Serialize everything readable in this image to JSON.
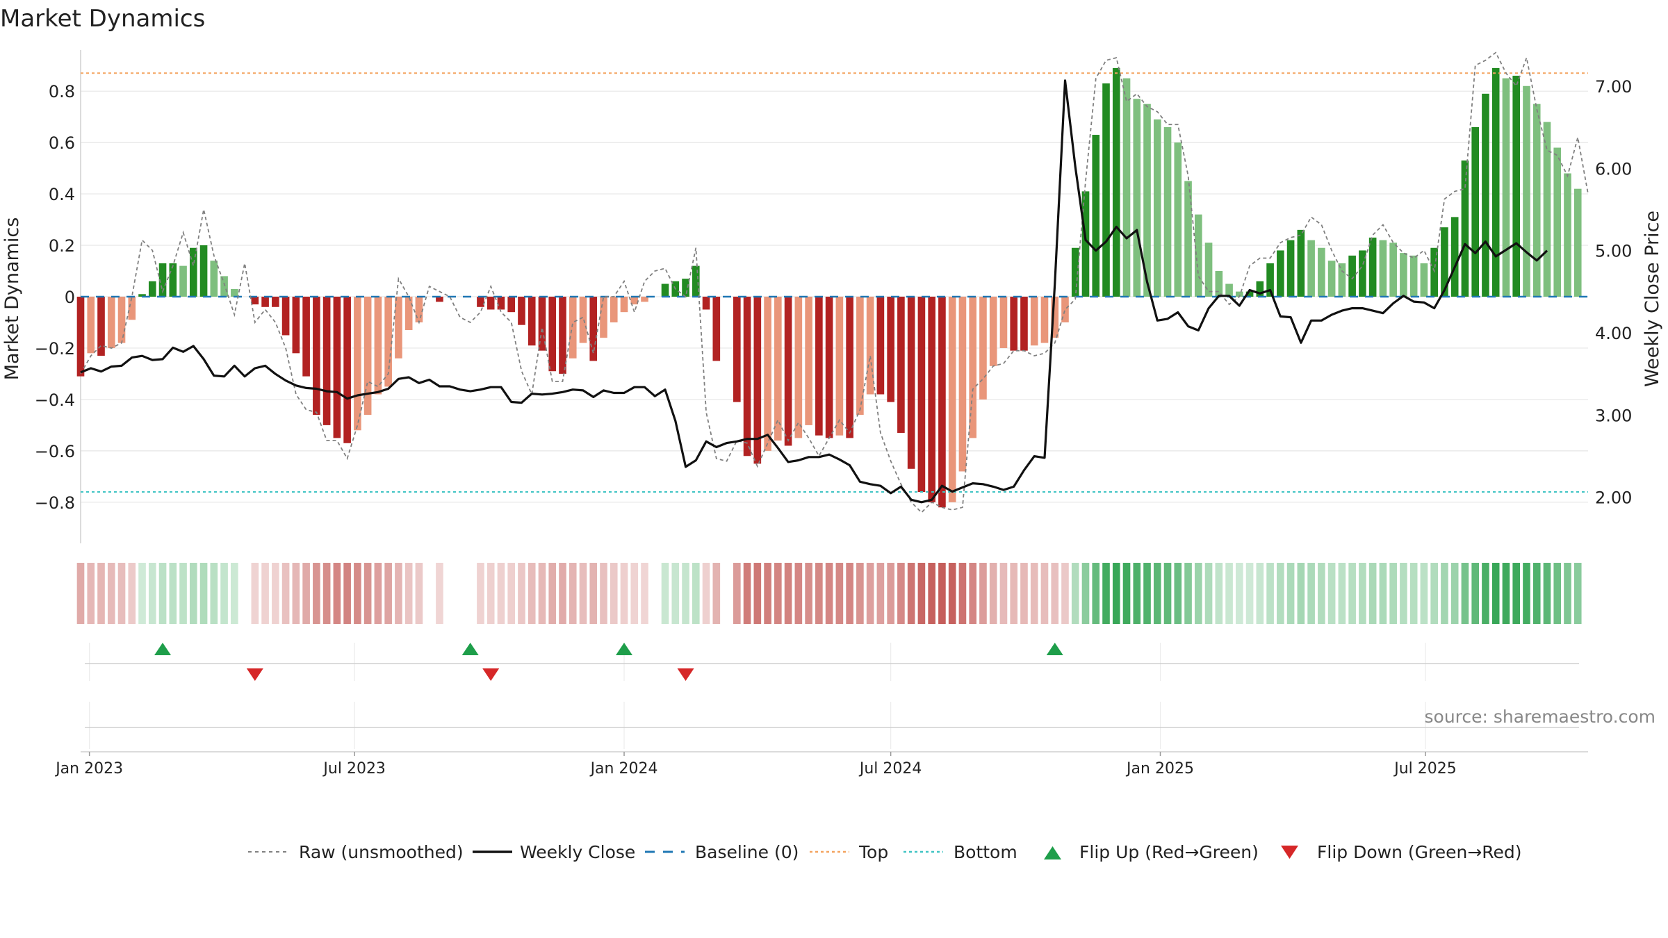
{
  "chart_data": {
    "type": "bar",
    "title": "Market Dynamics",
    "ylabel": "Market Dynamics",
    "y2label": "Weekly Close Price",
    "ylim": [
      -0.96,
      0.96
    ],
    "y2lim": [
      1.44,
      7.44
    ],
    "yticks": [
      -0.8,
      -0.6,
      -0.4,
      -0.2,
      0,
      0.2,
      0.4,
      0.6,
      0.8
    ],
    "yticklabels": [
      "−0.8",
      "−0.6",
      "−0.4",
      "−0.2",
      "0",
      "0.2",
      "0.4",
      "0.6",
      "0.8"
    ],
    "y2ticks": [
      2.0,
      3.0,
      4.0,
      5.0,
      6.0,
      7.0
    ],
    "y2ticklabels": [
      "2.00",
      "3.00",
      "4.00",
      "5.00",
      "6.00",
      "7.00"
    ],
    "xlim": [
      "2022-12-26",
      "2025-10-20"
    ],
    "xticks": [
      "2023-01-01",
      "2023-07-01",
      "2024-01-01",
      "2024-07-01",
      "2025-01-01",
      "2025-07-01"
    ],
    "xticklabels": [
      "Jan 2023",
      "Jul 2023",
      "Jan 2024",
      "Jul 2024",
      "Jan 2025",
      "Jul 2025"
    ],
    "grid": true,
    "top_level": 0.87,
    "bottom_level": -0.76,
    "baseline": 0,
    "start_date": "2022-12-26",
    "week_step_days": 7,
    "values": [
      -0.31,
      -0.22,
      -0.23,
      -0.2,
      -0.18,
      -0.09,
      0.01,
      0.06,
      0.13,
      0.13,
      0.12,
      0.19,
      0.2,
      0.14,
      0.08,
      0.03,
      0.0,
      -0.03,
      -0.04,
      -0.04,
      -0.15,
      -0.22,
      -0.31,
      -0.46,
      -0.5,
      -0.55,
      -0.57,
      -0.52,
      -0.46,
      -0.38,
      -0.35,
      -0.24,
      -0.13,
      -0.1,
      0.0,
      -0.02,
      0.0,
      0.0,
      0.0,
      -0.04,
      -0.05,
      -0.05,
      -0.06,
      -0.11,
      -0.19,
      -0.21,
      -0.29,
      -0.3,
      -0.24,
      -0.18,
      -0.25,
      -0.16,
      -0.1,
      -0.06,
      -0.03,
      -0.02,
      0.0,
      0.05,
      0.06,
      0.07,
      0.12,
      -0.05,
      -0.25,
      0.0,
      -0.41,
      -0.62,
      -0.65,
      -0.6,
      -0.56,
      -0.58,
      -0.55,
      -0.5,
      -0.54,
      -0.55,
      -0.54,
      -0.55,
      -0.46,
      -0.38,
      -0.38,
      -0.41,
      -0.53,
      -0.67,
      -0.76,
      -0.8,
      -0.82,
      -0.8,
      -0.68,
      -0.55,
      -0.4,
      -0.27,
      -0.2,
      -0.21,
      -0.21,
      -0.19,
      -0.18,
      -0.16,
      -0.1,
      0.19,
      0.41,
      0.63,
      0.83,
      0.89,
      0.85,
      0.77,
      0.75,
      0.69,
      0.66,
      0.6,
      0.45,
      0.32,
      0.21,
      0.1,
      0.05,
      0.02,
      0.02,
      0.06,
      0.13,
      0.18,
      0.22,
      0.26,
      0.22,
      0.19,
      0.14,
      0.13,
      0.16,
      0.18,
      0.23,
      0.22,
      0.21,
      0.17,
      0.16,
      0.13,
      0.19,
      0.27,
      0.31,
      0.53,
      0.66,
      0.79,
      0.89,
      0.85,
      0.86,
      0.82,
      0.75,
      0.68,
      0.58,
      0.48,
      0.42
    ],
    "raw_values": [
      -0.3,
      -0.23,
      -0.19,
      -0.2,
      -0.18,
      0.0,
      0.22,
      0.18,
      0.02,
      0.12,
      0.25,
      0.12,
      0.34,
      0.16,
      0.05,
      -0.07,
      0.13,
      -0.1,
      -0.05,
      -0.1,
      -0.2,
      -0.38,
      -0.44,
      -0.45,
      -0.56,
      -0.56,
      -0.63,
      -0.5,
      -0.33,
      -0.35,
      -0.3,
      0.07,
      0.0,
      -0.1,
      0.04,
      0.02,
      0.0,
      -0.08,
      -0.1,
      -0.06,
      0.04,
      -0.06,
      -0.1,
      -0.29,
      -0.38,
      -0.12,
      -0.33,
      -0.33,
      -0.1,
      -0.08,
      -0.22,
      0.0,
      0.0,
      0.06,
      -0.06,
      0.06,
      0.1,
      0.11,
      0.03,
      0.0,
      0.19,
      -0.45,
      -0.63,
      -0.64,
      -0.56,
      -0.57,
      -0.66,
      -0.57,
      -0.48,
      -0.56,
      -0.49,
      -0.55,
      -0.62,
      -0.55,
      -0.48,
      -0.53,
      -0.44,
      -0.23,
      -0.53,
      -0.64,
      -0.73,
      -0.8,
      -0.84,
      -0.8,
      -0.82,
      -0.83,
      -0.82,
      -0.36,
      -0.32,
      -0.27,
      -0.26,
      -0.21,
      -0.21,
      -0.23,
      -0.22,
      -0.18,
      -0.05,
      -0.01,
      0.45,
      0.85,
      0.92,
      0.93,
      0.76,
      0.79,
      0.74,
      0.72,
      0.67,
      0.67,
      0.47,
      0.08,
      0.02,
      0.02,
      -0.03,
      0.0,
      0.12,
      0.15,
      0.15,
      0.21,
      0.23,
      0.24,
      0.31,
      0.28,
      0.18,
      0.1,
      0.07,
      0.12,
      0.24,
      0.28,
      0.21,
      0.17,
      0.15,
      0.18,
      0.1,
      0.38,
      0.41,
      0.42,
      0.9,
      0.92,
      0.95,
      0.87,
      0.82,
      0.93,
      0.73,
      0.57,
      0.55,
      0.47,
      0.62,
      0.4
    ],
    "price": [
      3.52,
      3.57,
      3.53,
      3.59,
      3.6,
      3.7,
      3.72,
      3.67,
      3.68,
      3.82,
      3.77,
      3.84,
      3.68,
      3.48,
      3.47,
      3.6,
      3.47,
      3.57,
      3.6,
      3.5,
      3.42,
      3.36,
      3.33,
      3.32,
      3.29,
      3.28,
      3.2,
      3.24,
      3.26,
      3.28,
      3.32,
      3.44,
      3.46,
      3.39,
      3.43,
      3.35,
      3.35,
      3.31,
      3.29,
      3.31,
      3.34,
      3.34,
      3.16,
      3.15,
      3.26,
      3.25,
      3.26,
      3.28,
      3.31,
      3.3,
      3.22,
      3.3,
      3.27,
      3.27,
      3.34,
      3.34,
      3.23,
      3.31,
      2.93,
      2.37,
      2.45,
      2.68,
      2.61,
      2.66,
      2.68,
      2.71,
      2.71,
      2.76,
      2.6,
      2.43,
      2.45,
      2.49,
      2.49,
      2.52,
      2.46,
      2.39,
      2.19,
      2.16,
      2.14,
      2.05,
      2.13,
      1.97,
      1.94,
      1.97,
      2.14,
      2.07,
      2.12,
      2.17,
      2.16,
      2.13,
      2.09,
      2.13,
      2.33,
      2.5,
      2.48,
      4.59,
      7.07,
      6.02,
      5.13,
      5.0,
      5.11,
      5.29,
      5.15,
      5.25,
      4.62,
      4.15,
      4.17,
      4.25,
      4.08,
      4.03,
      4.3,
      4.45,
      4.45,
      4.33,
      4.52,
      4.48,
      4.52,
      4.2,
      4.19,
      3.88,
      4.15,
      4.15,
      4.22,
      4.27,
      4.3,
      4.3,
      4.27,
      4.24,
      4.36,
      4.45,
      4.38,
      4.37,
      4.3,
      4.52,
      4.8,
      5.08,
      4.97,
      5.11,
      4.93,
      5.01,
      5.09,
      4.98,
      4.88,
      5.0
    ]
  },
  "legend": {
    "raw": "Raw (unsmoothed)",
    "close": "Weekly Close",
    "baseline": "Baseline (0)",
    "top": "Top",
    "bottom": "Bottom",
    "flip_up": "Flip Up (Red→Green)",
    "flip_down": "Flip Down (Green→Red)"
  },
  "flips": {
    "up": [
      "2023-02-20",
      "2023-09-18",
      "2024-01-01",
      "2024-10-21"
    ],
    "down": [
      "2023-04-24",
      "2023-10-02",
      "2024-02-12"
    ]
  },
  "colors": {
    "strong_up": "#228b22",
    "weak_up": "#7ebf7e",
    "strong_down": "#b22222",
    "weak_down": "#e9967a",
    "raw": "#808080",
    "close": "#111111",
    "baseline": "#1f77b4",
    "top": "#f4a460",
    "bottom": "#40c4c4",
    "flip_up": "#1e9e4a",
    "flip_down": "#d62728"
  },
  "source": "source: sharemaestro.com"
}
